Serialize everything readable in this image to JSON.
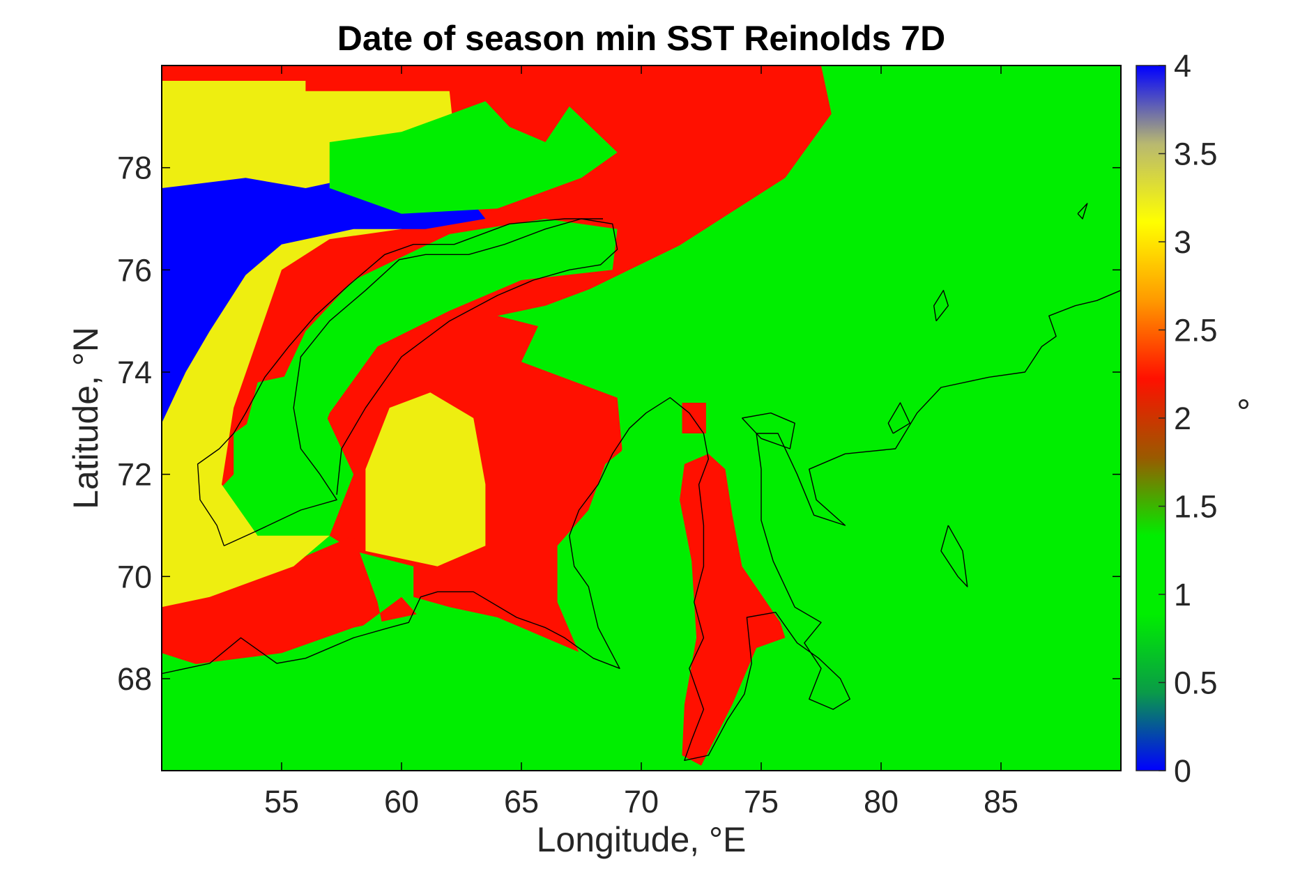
{
  "chart_data": {
    "type": "heatmap",
    "title": "Date of season min SST Reinolds 7D",
    "xlabel": "Longitude, °E",
    "ylabel": "Latitude, °N",
    "xlim": [
      50.0,
      90.0
    ],
    "ylim": [
      66.2,
      80.0
    ],
    "xticks": [
      55,
      60,
      65,
      70,
      75,
      80,
      85
    ],
    "yticks": [
      68,
      70,
      72,
      74,
      76,
      78
    ],
    "colorbar": {
      "label": "°",
      "range": [
        0,
        4
      ],
      "ticks": [
        "0",
        "0.5",
        "1",
        "1.5",
        "2",
        "2.5",
        "3",
        "3.5",
        "4"
      ],
      "colormap": [
        "#0000ff",
        "#0a9b48",
        "#00ee00",
        "#00ee00",
        "#9a5a00",
        "#ff1000",
        "#ff9a00",
        "#ffff00",
        "#b8b870",
        "#0000ff"
      ]
    },
    "classes": [
      {
        "value": 1,
        "color": "#00ee00"
      },
      {
        "value": 2,
        "color": "#ff1000"
      },
      {
        "value": 3,
        "color": "#eeee10"
      },
      {
        "value": 4,
        "color": "#0000ff"
      }
    ],
    "regions": [
      {
        "value": 2,
        "polygon": [
          [
            50,
            80
          ],
          [
            77.5,
            80
          ],
          [
            78,
            78.9
          ],
          [
            76,
            77.8
          ],
          [
            73,
            76.8
          ],
          [
            69.5,
            76
          ],
          [
            66,
            75.2
          ],
          [
            65,
            74.2
          ],
          [
            69,
            73.5
          ],
          [
            69.2,
            72.5
          ],
          [
            68.5,
            71
          ],
          [
            68,
            69.5
          ],
          [
            69,
            68.2
          ],
          [
            67,
            68.6
          ],
          [
            64,
            69.2
          ],
          [
            62,
            69.4
          ],
          [
            60.5,
            69.6
          ],
          [
            60.5,
            70.2
          ],
          [
            58,
            70.5
          ],
          [
            57,
            70.8
          ],
          [
            58,
            72
          ],
          [
            57,
            73
          ],
          [
            56,
            74
          ],
          [
            54,
            73.8
          ],
          [
            53,
            72
          ],
          [
            52,
            71.5
          ],
          [
            50,
            71.5
          ]
        ]
      },
      {
        "value": 2,
        "polygon": [
          [
            50,
            70
          ],
          [
            54,
            70
          ],
          [
            58,
            70.8
          ],
          [
            59,
            69.5
          ],
          [
            59.5,
            68.4
          ],
          [
            61.5,
            68.8
          ],
          [
            60,
            69.6
          ],
          [
            56,
            68.2
          ],
          [
            52,
            68.2
          ],
          [
            50,
            68.5
          ]
        ]
      },
      {
        "value": 3,
        "polygon": [
          [
            50,
            79.7
          ],
          [
            56,
            79.7
          ],
          [
            56,
            79.3
          ],
          [
            50,
            79.3
          ]
        ]
      },
      {
        "value": 3,
        "polygon": [
          [
            50,
            79.5
          ],
          [
            62,
            79.5
          ],
          [
            62.5,
            77.3
          ],
          [
            60,
            76.8
          ],
          [
            57,
            76.6
          ],
          [
            55,
            76
          ],
          [
            53,
            73.3
          ],
          [
            52.5,
            71.8
          ],
          [
            54,
            70.8
          ],
          [
            57,
            70.8
          ],
          [
            55.5,
            70.2
          ],
          [
            52,
            69.6
          ],
          [
            50,
            69.4
          ]
        ]
      },
      {
        "value": 4,
        "polygon": [
          [
            50,
            77.6
          ],
          [
            53.5,
            77.8
          ],
          [
            56,
            77.6
          ],
          [
            58,
            77.8
          ],
          [
            61,
            77.8
          ],
          [
            62.5,
            77.6
          ],
          [
            63.5,
            77.0
          ],
          [
            61,
            76.8
          ],
          [
            58,
            76.8
          ],
          [
            55,
            76.5
          ],
          [
            53.5,
            75.9
          ],
          [
            52,
            74.8
          ],
          [
            51,
            74
          ],
          [
            50,
            73
          ]
        ]
      },
      {
        "value": 3,
        "polygon": [
          [
            58.5,
            72.1
          ],
          [
            59.5,
            73.3
          ],
          [
            61.2,
            73.6
          ],
          [
            63,
            73.1
          ],
          [
            63.5,
            71.8
          ],
          [
            63.5,
            70.6
          ],
          [
            61.5,
            70.2
          ],
          [
            58.5,
            70.5
          ]
        ]
      },
      {
        "value": 1,
        "polygon": [
          [
            57,
            72.3
          ],
          [
            57.5,
            72.2
          ],
          [
            57.5,
            71.5
          ],
          [
            56.8,
            71.4
          ]
        ]
      },
      {
        "value": 1,
        "polygon": [
          [
            57,
            78.5
          ],
          [
            60,
            78.7
          ],
          [
            63.5,
            79.3
          ],
          [
            64.5,
            78.8
          ],
          [
            66,
            78.5
          ],
          [
            67,
            79.2
          ],
          [
            69,
            78.3
          ],
          [
            67.5,
            77.8
          ],
          [
            64,
            77.2
          ],
          [
            60,
            77.1
          ],
          [
            57,
            77.6
          ]
        ]
      },
      {
        "value": 1,
        "polygon": [
          [
            53,
            72.8
          ],
          [
            54.5,
            73.3
          ],
          [
            56,
            74.8
          ],
          [
            58,
            75.8
          ],
          [
            62,
            76.7
          ],
          [
            66,
            77
          ],
          [
            69,
            76.8
          ],
          [
            68.8,
            76
          ],
          [
            65,
            75.8
          ],
          [
            62,
            75.2
          ],
          [
            59,
            74.5
          ],
          [
            57,
            73.2
          ],
          [
            56,
            72
          ],
          [
            57,
            71
          ],
          [
            54,
            70.8
          ],
          [
            53,
            71.5
          ]
        ]
      },
      {
        "value": 1,
        "polygon": [
          [
            77.5,
            80
          ],
          [
            90,
            80
          ],
          [
            90,
            66.2
          ],
          [
            50,
            66.2
          ],
          [
            50,
            68.2
          ],
          [
            55,
            68.5
          ],
          [
            58,
            69
          ],
          [
            61,
            69.3
          ],
          [
            63.5,
            68.5
          ],
          [
            66,
            67.8
          ],
          [
            67.5,
            68.4
          ],
          [
            66.5,
            69.5
          ],
          [
            66.5,
            70.6
          ],
          [
            67.8,
            71.3
          ],
          [
            68.5,
            72.2
          ],
          [
            69.3,
            72.5
          ],
          [
            70.5,
            73.2
          ],
          [
            72,
            73.2
          ],
          [
            72.5,
            72.5
          ],
          [
            71.5,
            71.7
          ],
          [
            72,
            69.5
          ],
          [
            72.5,
            67.5
          ],
          [
            71.5,
            66.4
          ],
          [
            72.5,
            66.3
          ],
          [
            73.7,
            67.7
          ],
          [
            74.8,
            68.8
          ],
          [
            76,
            68.9
          ],
          [
            75.3,
            69.5
          ],
          [
            74.3,
            70.5
          ],
          [
            73.8,
            71.8
          ],
          [
            73,
            72.2
          ],
          [
            74,
            73.2
          ],
          [
            71,
            73.8
          ],
          [
            69.5,
            74.6
          ],
          [
            66.5,
            74.8
          ],
          [
            64,
            75.1
          ],
          [
            66,
            75.3
          ],
          [
            70,
            76
          ],
          [
            73,
            76.9
          ],
          [
            76,
            77.8
          ],
          [
            78,
            79.1
          ]
        ]
      },
      {
        "value": 2,
        "polygon": [
          [
            71.8,
            72.2
          ],
          [
            72.8,
            72.4
          ],
          [
            73.5,
            72.1
          ],
          [
            73.8,
            71.2
          ],
          [
            74.2,
            70.2
          ],
          [
            75.8,
            69.1
          ],
          [
            76,
            68.8
          ],
          [
            74.8,
            68.6
          ],
          [
            73.8,
            67.5
          ],
          [
            72.5,
            66.3
          ],
          [
            71.7,
            66.5
          ],
          [
            71.8,
            67.5
          ],
          [
            72.3,
            68.8
          ],
          [
            72.1,
            70.3
          ],
          [
            71.6,
            71.5
          ]
        ]
      },
      {
        "value": 2,
        "polygon": [
          [
            71.7,
            73.4
          ],
          [
            72.7,
            73.4
          ],
          [
            72.7,
            72.8
          ],
          [
            71.7,
            72.8
          ]
        ]
      }
    ],
    "coastlines": [
      [
        [
          50,
          68.1
        ],
        [
          52,
          68.3
        ],
        [
          53.3,
          68.8
        ],
        [
          54.8,
          68.3
        ],
        [
          56,
          68.4
        ],
        [
          58,
          68.8
        ],
        [
          59.5,
          69.0
        ],
        [
          60.3,
          69.1
        ],
        [
          60.8,
          69.6
        ],
        [
          61.5,
          69.7
        ],
        [
          63,
          69.7
        ],
        [
          64.8,
          69.2
        ],
        [
          66,
          69.0
        ],
        [
          66.8,
          68.8
        ],
        [
          68,
          68.4
        ],
        [
          69.1,
          68.2
        ],
        [
          68.2,
          69.0
        ],
        [
          67.8,
          69.8
        ],
        [
          67.2,
          70.2
        ],
        [
          67.0,
          70.8
        ],
        [
          67.4,
          71.3
        ],
        [
          68.2,
          71.8
        ],
        [
          68.8,
          72.4
        ],
        [
          69.5,
          72.9
        ],
        [
          70.2,
          73.2
        ],
        [
          71.2,
          73.5
        ],
        [
          72.0,
          73.2
        ],
        [
          72.6,
          72.8
        ],
        [
          72.8,
          72.3
        ],
        [
          72.4,
          71.8
        ],
        [
          72.6,
          71.0
        ],
        [
          72.6,
          70.2
        ],
        [
          72.2,
          69.5
        ],
        [
          72.6,
          68.8
        ],
        [
          72.0,
          68.2
        ],
        [
          72.6,
          67.4
        ],
        [
          72.1,
          66.8
        ],
        [
          71.8,
          66.4
        ],
        [
          72.8,
          66.5
        ],
        [
          73.6,
          67.2
        ],
        [
          74.3,
          67.7
        ],
        [
          74.6,
          68.3
        ],
        [
          74.4,
          69.2
        ],
        [
          75.6,
          69.3
        ],
        [
          76.5,
          68.7
        ],
        [
          77.4,
          68.4
        ],
        [
          78.3,
          68.0
        ],
        [
          78.7,
          67.6
        ],
        [
          78,
          67.4
        ],
        [
          77,
          67.6
        ],
        [
          77.5,
          68.2
        ],
        [
          76.8,
          68.7
        ],
        [
          77.5,
          69.1
        ],
        [
          76.4,
          69.4
        ],
        [
          75.5,
          70.3
        ],
        [
          75.0,
          71.1
        ],
        [
          75.0,
          72.1
        ],
        [
          74.8,
          72.8
        ],
        [
          75.7,
          72.8
        ],
        [
          76.5,
          72.0
        ],
        [
          77.2,
          71.2
        ],
        [
          78.5,
          71.0
        ],
        [
          77.3,
          71.5
        ],
        [
          77.0,
          72.1
        ],
        [
          78.5,
          72.4
        ],
        [
          80.6,
          72.5
        ],
        [
          81.5,
          73.2
        ],
        [
          82.5,
          73.7
        ],
        [
          84.5,
          73.9
        ],
        [
          86.0,
          74.0
        ],
        [
          86.7,
          74.5
        ],
        [
          87.3,
          74.7
        ],
        [
          87.0,
          75.1
        ],
        [
          88.1,
          75.3
        ],
        [
          89,
          75.4
        ],
        [
          90,
          75.6
        ]
      ],
      [
        [
          52.6,
          70.6
        ],
        [
          54,
          70.9
        ],
        [
          55.8,
          71.3
        ],
        [
          57.3,
          71.5
        ],
        [
          56.6,
          72.0
        ],
        [
          55.8,
          72.5
        ],
        [
          55.5,
          73.3
        ],
        [
          55.8,
          74.3
        ],
        [
          57.0,
          75.0
        ],
        [
          58.5,
          75.6
        ],
        [
          59.9,
          76.2
        ],
        [
          61.0,
          76.3
        ],
        [
          62.8,
          76.3
        ],
        [
          64.3,
          76.5
        ],
        [
          66.0,
          76.8
        ],
        [
          67.5,
          77.0
        ],
        [
          68.8,
          76.9
        ],
        [
          69.0,
          76.4
        ],
        [
          68.3,
          76.1
        ],
        [
          67.0,
          76.0
        ],
        [
          65.5,
          75.8
        ],
        [
          64.0,
          75.5
        ],
        [
          62.0,
          75.0
        ],
        [
          60.0,
          74.3
        ],
        [
          58.5,
          73.3
        ],
        [
          57.5,
          72.5
        ],
        [
          57.3,
          71.6
        ]
      ],
      [
        [
          52.6,
          70.6
        ],
        [
          52.3,
          71.0
        ],
        [
          51.6,
          71.5
        ],
        [
          51.5,
          72.2
        ],
        [
          52.4,
          72.5
        ],
        [
          53.0,
          72.8
        ],
        [
          53.5,
          73.2
        ],
        [
          54.3,
          73.9
        ],
        [
          55.3,
          74.5
        ],
        [
          56.4,
          75.1
        ],
        [
          57.8,
          75.7
        ],
        [
          59.3,
          76.3
        ],
        [
          60.5,
          76.5
        ],
        [
          62.2,
          76.5
        ],
        [
          64.5,
          76.9
        ],
        [
          66.8,
          77.0
        ],
        [
          68.4,
          77.0
        ]
      ],
      [
        [
          82.3,
          75.0
        ],
        [
          82.8,
          75.3
        ],
        [
          82.6,
          75.6
        ],
        [
          82.2,
          75.3
        ],
        [
          82.3,
          75.0
        ]
      ],
      [
        [
          80.5,
          72.8
        ],
        [
          81.2,
          73.0
        ],
        [
          80.8,
          73.4
        ],
        [
          80.3,
          73.0
        ],
        [
          80.5,
          72.8
        ]
      ],
      [
        [
          82.8,
          71.0
        ],
        [
          83.4,
          70.5
        ],
        [
          83.6,
          69.8
        ],
        [
          83.2,
          70.0
        ],
        [
          82.5,
          70.5
        ],
        [
          82.8,
          71.0
        ]
      ],
      [
        [
          74.2,
          73.1
        ],
        [
          75.0,
          72.7
        ],
        [
          76.2,
          72.5
        ],
        [
          76.4,
          73.0
        ],
        [
          75.4,
          73.2
        ],
        [
          74.2,
          73.1
        ]
      ],
      [
        [
          88.2,
          77.1
        ],
        [
          88.6,
          77.3
        ],
        [
          88.4,
          77.0
        ],
        [
          88.2,
          77.1
        ]
      ]
    ]
  }
}
